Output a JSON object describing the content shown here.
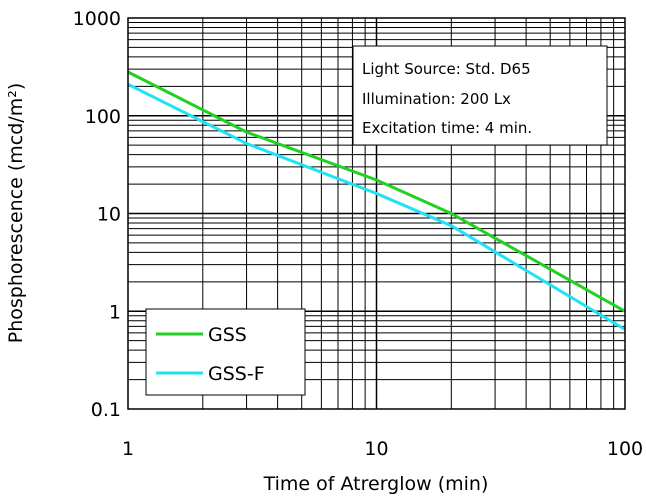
{
  "chart_data": {
    "type": "line",
    "title": "",
    "x_scale": "log",
    "y_scale": "log",
    "xlim": [
      1,
      100
    ],
    "ylim": [
      0.1,
      1000
    ],
    "x_ticks": [
      "1",
      "10",
      "100"
    ],
    "y_ticks": [
      "0.1",
      "1",
      "10",
      "100",
      "1000"
    ],
    "xlabel": "Time of Atrerglow (min)",
    "ylabel": "Phosphorescence (mcd/m²)",
    "grid": true,
    "legend_position": "bottom-left",
    "series": [
      {
        "name": "GSS",
        "color": "#1fd21f",
        "x": [
          1,
          3,
          10,
          20,
          100
        ],
        "y": [
          280,
          68,
          22,
          10,
          1.0
        ]
      },
      {
        "name": "GSS-F",
        "color": "#1ee3f5",
        "x": [
          1,
          3,
          10,
          20,
          100
        ],
        "y": [
          210,
          52,
          16,
          7.5,
          0.65
        ]
      }
    ],
    "annotations": [
      "Light Source: Std. D65",
      "Illumination:   200 Lx",
      "Excitation time:  4 min."
    ]
  }
}
